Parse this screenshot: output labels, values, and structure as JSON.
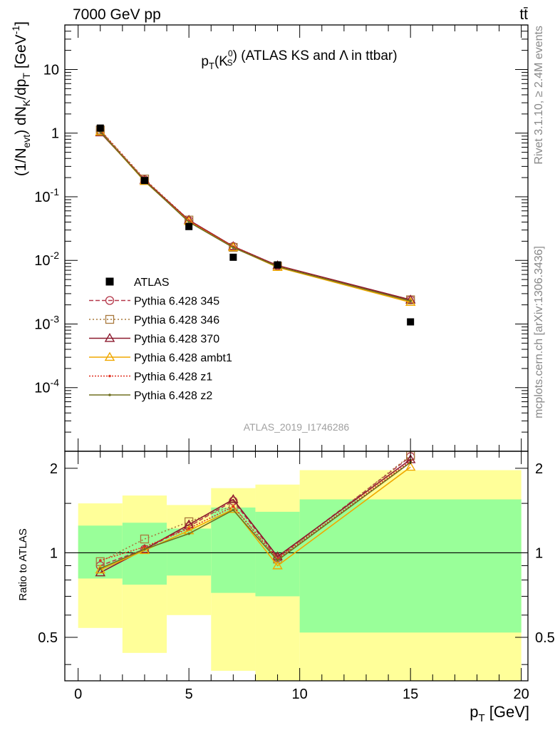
{
  "header": {
    "left": "7000 GeV pp",
    "right": "tt̄"
  },
  "side": {
    "top_note": "Rivet 3.1.10, ≥ 2.4M events",
    "bottom_note": "mcplots.cern.ch [arXiv:1306.3436]"
  },
  "analysis_id": "ATLAS_2019_I1746286",
  "colors": {
    "ATLAS": "#000000",
    "p345": "#b5384a",
    "p346": "#a8783c",
    "p370": "#8c1a2e",
    "ambt1": "#f0a800",
    "z1": "#e03020",
    "z2": "#707020",
    "band_inner": "#99ff99",
    "band_outer": "#ffff99"
  },
  "chart_data": [
    {
      "type": "line",
      "title": "p_T(K_S^0) (ATLAS KS and Λ in ttbar)",
      "ylabel": "(1/N_evt) dN_K/dp_T [GeV^-1]",
      "xlabel": "",
      "yscale": "log",
      "xlim": [
        -0.6,
        20.3
      ],
      "ylim_log10": [
        -5,
        1.7
      ],
      "ytick_labels": [
        "10",
        "1",
        "10^-1",
        "10^-2",
        "10^-3",
        "10^-4"
      ],
      "x": [
        1,
        3,
        5,
        7,
        9,
        15
      ],
      "data": {
        "name": "ATLAS",
        "values": [
          1.2,
          0.18,
          0.034,
          0.0112,
          0.0085,
          0.00108
        ]
      },
      "legend_position": "middle-left",
      "series": [
        {
          "name": "Pythia 6.428 345",
          "marker": "circle",
          "dash": "6,3",
          "values": [
            1.08,
            0.185,
            0.042,
            0.0165,
            0.0082,
            0.0024
          ]
        },
        {
          "name": "Pythia 6.428 346",
          "marker": "square",
          "dash": "2,3",
          "values": [
            1.12,
            0.19,
            0.043,
            0.016,
            0.0081,
            0.0024
          ]
        },
        {
          "name": "Pythia 6.428 370",
          "marker": "triangle",
          "dash": "",
          "values": [
            1.02,
            0.182,
            0.043,
            0.0166,
            0.0083,
            0.0024
          ]
        },
        {
          "name": "Pythia 6.428 ambt1",
          "marker": "triangle",
          "dash": "",
          "values": [
            1.05,
            0.175,
            0.041,
            0.016,
            0.0078,
            0.0022
          ]
        },
        {
          "name": "Pythia 6.428 z1",
          "marker": "dot",
          "dash": "2,2",
          "values": [
            1.1,
            0.185,
            0.042,
            0.0164,
            0.0081,
            0.0023
          ]
        },
        {
          "name": "Pythia 6.428 z2",
          "marker": "dot",
          "dash": "",
          "values": [
            1.05,
            0.178,
            0.04,
            0.0159,
            0.008,
            0.0023
          ]
        }
      ]
    },
    {
      "type": "line",
      "ylabel": "Ratio to ATLAS",
      "xlabel": "p_T [GeV]",
      "yscale": "log",
      "ylim": [
        0.35,
        2.3
      ],
      "y_ticks": [
        0.5,
        1,
        2
      ],
      "x_ticks": [
        0,
        5,
        10,
        15,
        20
      ],
      "x": [
        1,
        3,
        5,
        7,
        9,
        15
      ],
      "reference": 1,
      "bands": [
        {
          "x0": 0,
          "x1": 2,
          "inner": [
            0.81,
            1.25
          ],
          "outer": [
            0.54,
            1.5
          ]
        },
        {
          "x0": 2,
          "x1": 4,
          "inner": [
            0.77,
            1.28
          ],
          "outer": [
            0.44,
            1.6
          ]
        },
        {
          "x0": 4,
          "x1": 6,
          "inner": [
            0.83,
            1.22
          ],
          "outer": [
            0.6,
            1.48
          ]
        },
        {
          "x0": 6,
          "x1": 8,
          "inner": [
            0.72,
            1.45
          ],
          "outer": [
            0.38,
            1.7
          ]
        },
        {
          "x0": 8,
          "x1": 10,
          "inner": [
            0.7,
            1.4
          ],
          "outer": [
            0.35,
            1.75
          ]
        },
        {
          "x0": 10,
          "x1": 20,
          "inner": [
            0.52,
            1.55
          ],
          "outer": [
            0.35,
            1.97
          ]
        }
      ],
      "series": [
        {
          "name": "Pythia 6.428 345",
          "values": [
            0.9,
            1.03,
            1.24,
            1.53,
            0.96,
            2.2
          ]
        },
        {
          "name": "Pythia 6.428 346",
          "values": [
            0.93,
            1.12,
            1.29,
            1.47,
            0.95,
            2.22
          ]
        },
        {
          "name": "Pythia 6.428 370",
          "values": [
            0.85,
            1.03,
            1.26,
            1.55,
            0.97,
            2.15
          ]
        },
        {
          "name": "Pythia 6.428 ambt1",
          "values": [
            0.87,
            1.02,
            1.2,
            1.43,
            0.9,
            2.02
          ]
        },
        {
          "name": "Pythia 6.428 z1",
          "values": [
            0.94,
            1.05,
            1.22,
            1.46,
            0.95,
            2.12
          ]
        },
        {
          "name": "Pythia 6.428 z2",
          "values": [
            0.88,
            1.03,
            1.17,
            1.42,
            0.94,
            2.1
          ]
        }
      ]
    }
  ]
}
